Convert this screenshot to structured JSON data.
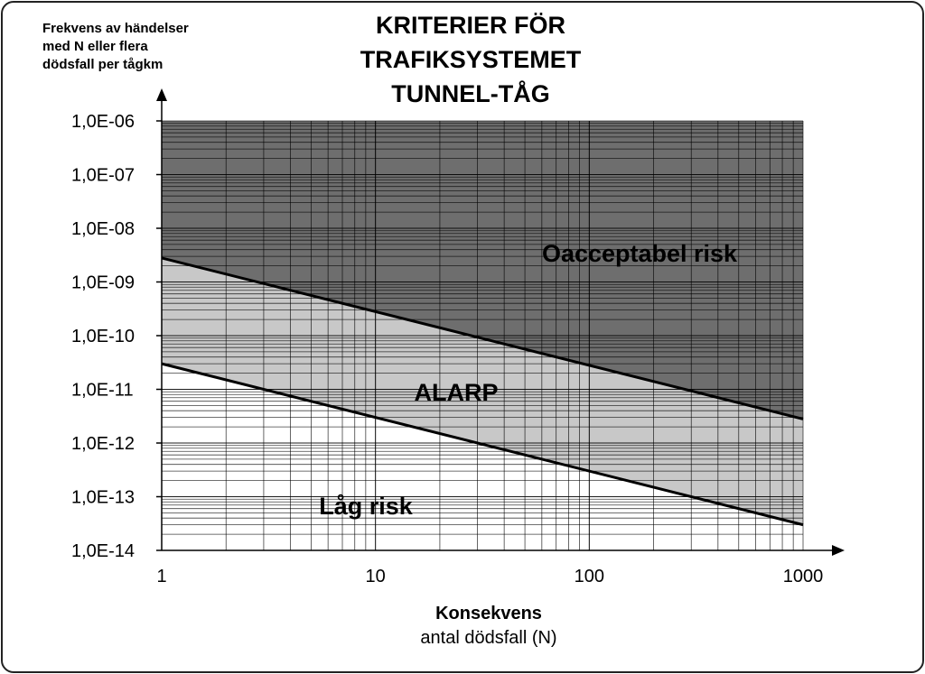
{
  "chart_data": {
    "type": "line",
    "title_lines": [
      "KRITERIER FÖR",
      "TRAFIKSYSTEMET",
      "TUNNEL-TÅG"
    ],
    "ylabel_lines": [
      "Frekvens av händelser",
      "med N eller flera",
      "dödsfall per tågkm"
    ],
    "xlabel": "Konsekvens",
    "xlabel_sub": "antal dödsfall (N)",
    "x_scale": "log",
    "y_scale": "log",
    "xlim": [
      1,
      1000
    ],
    "ylim": [
      1e-14,
      1e-06
    ],
    "x_tick_labels": [
      "1",
      "10",
      "100",
      "1000"
    ],
    "y_tick_labels": [
      "1,0E-06",
      "1,0E-07",
      "1,0E-08",
      "1,0E-09",
      "1,0E-10",
      "1,0E-11",
      "1,0E-12",
      "1,0E-13",
      "1,0E-14"
    ],
    "grid": true,
    "series": [
      {
        "x": [
          1,
          1000
        ],
        "y": [
          2.8e-09,
          2.8e-12
        ]
      },
      {
        "x": [
          1,
          1000
        ],
        "y": [
          3e-11,
          3e-14
        ]
      }
    ],
    "regions": [
      {
        "label": "Oacceptabel  risk",
        "color": "#6e6e6e"
      },
      {
        "label": "ALARP",
        "color": "#c8c8c8"
      },
      {
        "label": "Låg risk",
        "color": "#ffffff"
      }
    ]
  }
}
